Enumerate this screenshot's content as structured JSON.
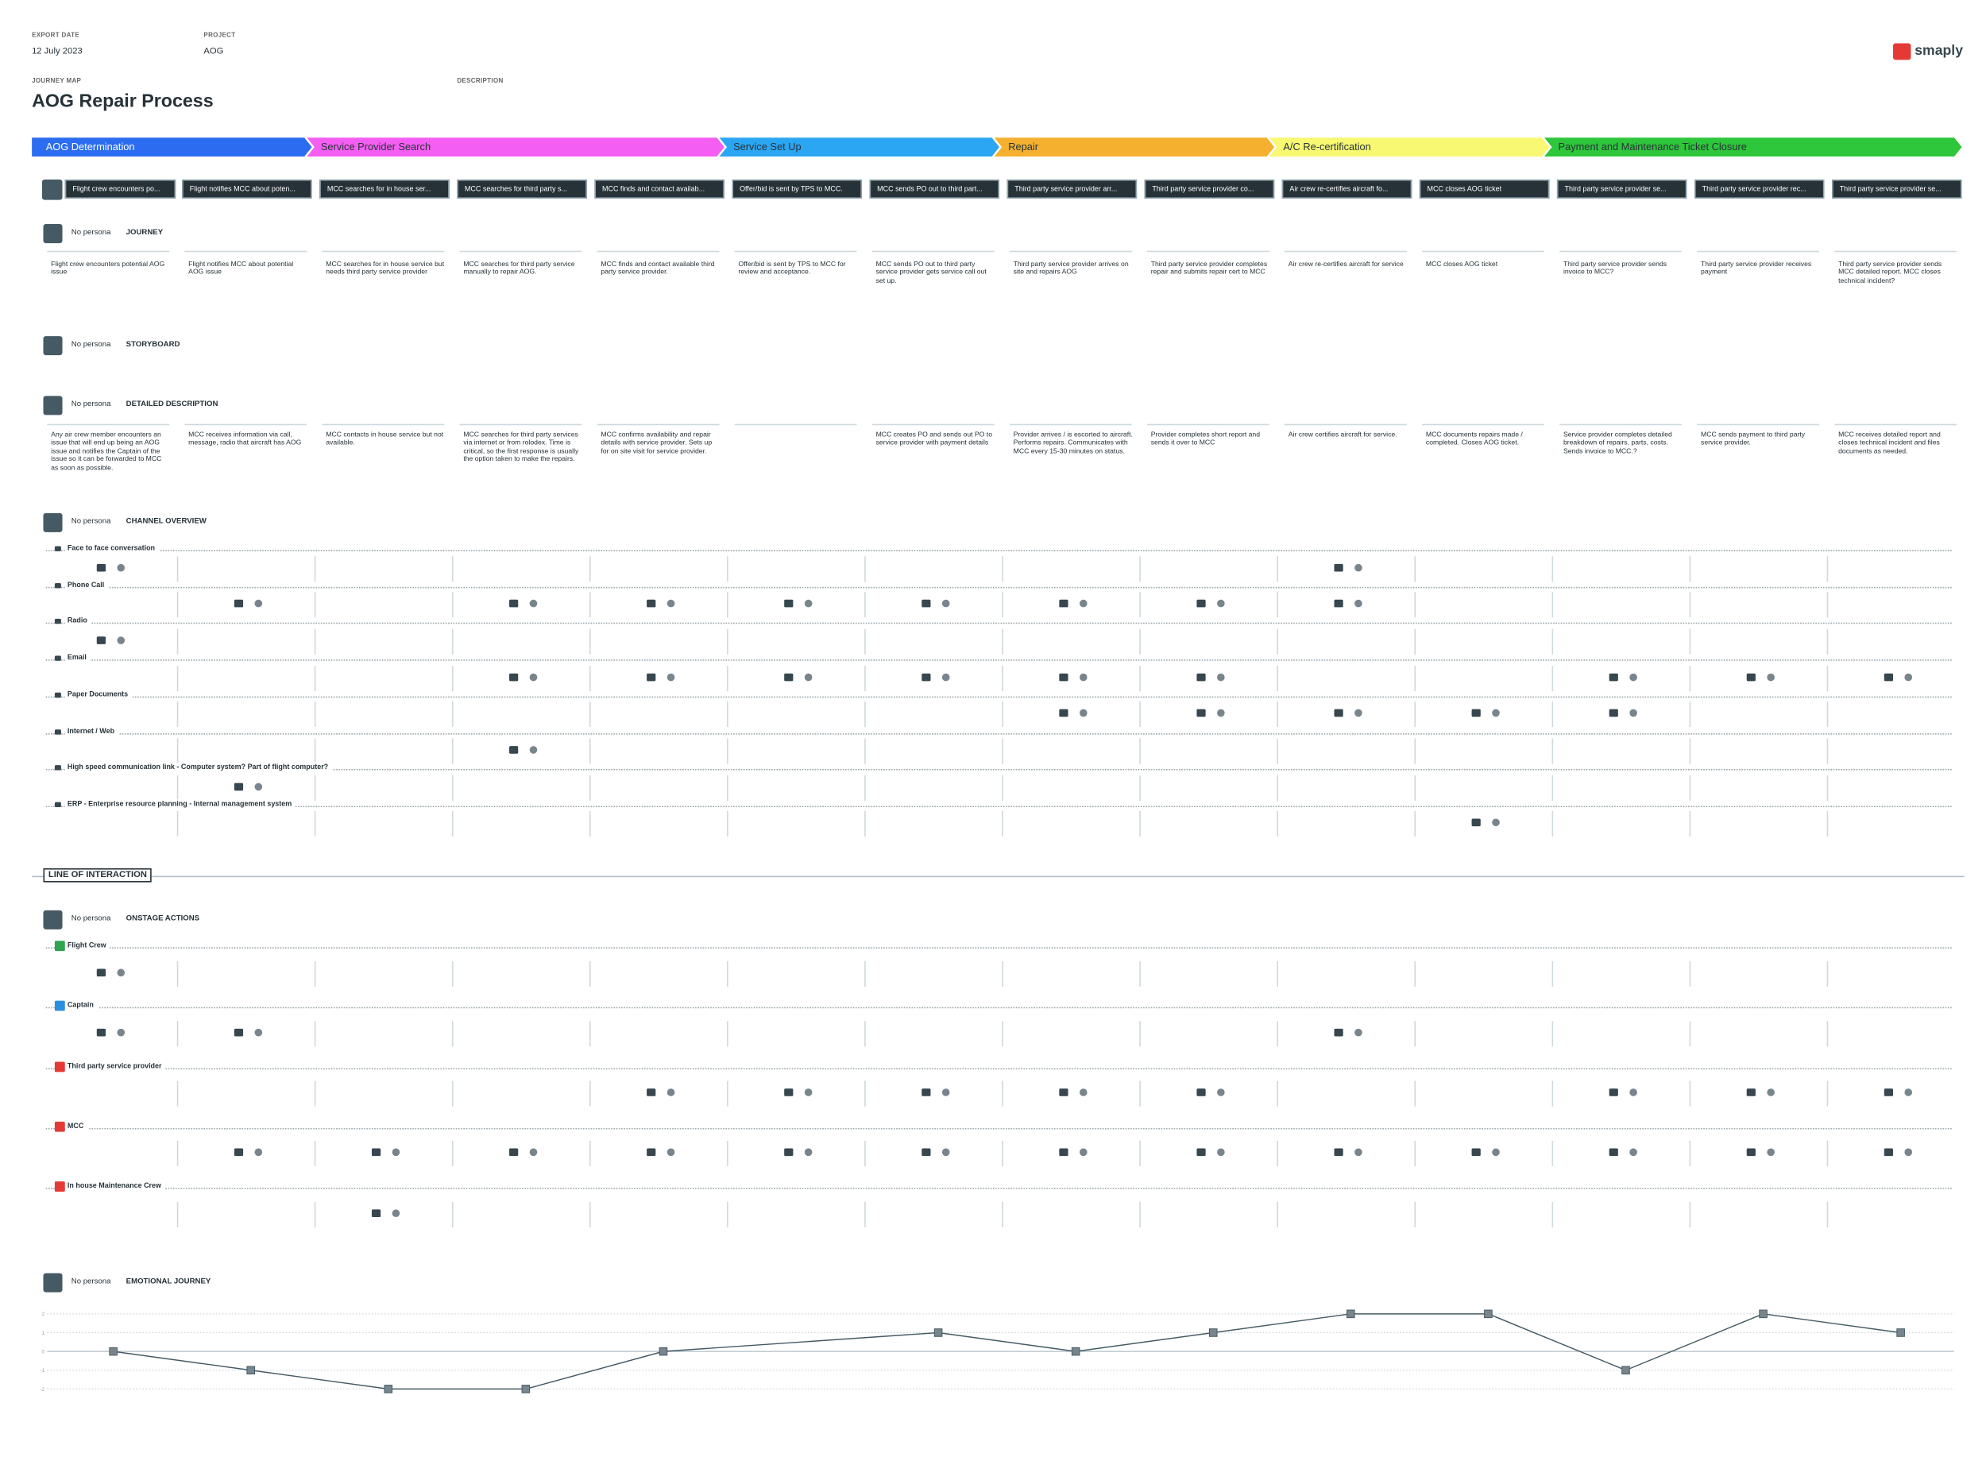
{
  "header": {
    "export_date_label": "EXPORT DATE",
    "export_date": "12 July 2023",
    "project_label": "PROJECT",
    "project": "AOG",
    "map_label": "JOURNEY MAP",
    "title": "AOG Repair Process",
    "description_label": "DESCRIPTION",
    "logo": "smaply"
  },
  "phases": [
    {
      "name": "AOG Determination",
      "color": "#2b6cf0",
      "span": [
        0,
        1
      ]
    },
    {
      "name": "Service Provider Search",
      "color": "#f55ef2",
      "span": [
        2,
        4
      ]
    },
    {
      "name": "Service Set Up",
      "color": "#2ba6f2",
      "span": [
        5,
        6
      ]
    },
    {
      "name": "Repair",
      "color": "#f6b030",
      "span": [
        7,
        8
      ]
    },
    {
      "name": "A/C Re-certification",
      "color": "#f8f872",
      "span": [
        9,
        10
      ]
    },
    {
      "name": "Payment and Maintenance Ticket Closure",
      "color": "#2ec63b",
      "span": [
        11,
        13
      ]
    }
  ],
  "steps": [
    "Flight crew encounters po...",
    "Flight notifies MCC about poten...",
    "MCC searches for in house ser...",
    "MCC searches for third party s...",
    "MCC finds and contact availab...",
    "Offer/bid is sent by TPS to MCC.",
    "MCC sends PO out to third part...",
    "Third party service provider arr...",
    "Third party service provider co...",
    "Air crew re-certifies aircraft fo...",
    "MCC closes AOG ticket",
    "Third party service provider se...",
    "Third party service provider rec...",
    "Third party service provider se..."
  ],
  "sections": {
    "journey": {
      "persona": "No persona",
      "title": "JOURNEY",
      "items": [
        "Flight crew encounters potential AOG issue",
        "Flight notifies MCC about potential AOG issue",
        "MCC searches for in house service but needs third party service provider",
        "MCC searches for third party service manually to repair AOG.",
        "MCC finds and contact available third party service provider.",
        "Offer/bid is sent by TPS to MCC for review and acceptance.",
        "MCC sends PO out to third party service provider gets service call out set up.",
        "Third party service provider arrives on site and repairs AOG",
        "Third party service provider completes repair and submits repair cert to MCC",
        "Air crew re-certifies aircraft for service",
        "MCC closes AOG ticket",
        "Third party service provider sends invoice to MCC?",
        "Third party service provider receives payment",
        "Third party service provider sends MCC detailed report. MCC closes technical incident?"
      ]
    },
    "storyboard": {
      "persona": "No persona",
      "title": "STORYBOARD"
    },
    "detailed_description": {
      "persona": "No persona",
      "title": "DETAILED DESCRIPTION",
      "items": [
        "Any air crew member encounters an issue that will end up being an AOG issue and notifies the Captain of the issue so it can be forwarded to MCC as soon as possible.",
        "MCC receives information via call, message, radio that aircraft has AOG",
        "MCC contacts in house service but not available.",
        "MCC searches for third party services via internet or from rolodex. Time is critical, so the first response is usually the option taken to make the repairs.",
        "MCC confirms availability and repair details with service provider. Sets up for on site visit for service provider.",
        null,
        "MCC creates PO and sends out PO to service provider with payment details",
        "Provider arrives / is escorted to aircraft. Performs repairs. Communicates with MCC every 15-30 minutes on status.",
        "Provider completes short report and sends it over to MCC",
        "Air crew certifies aircraft for service.",
        "MCC documents repairs made / completed. Closes AOG ticket.",
        "Service provider completes detailed breakdown of repairs, parts, costs. Sends invoice to MCC.?",
        "MCC sends payment to third party service provider.",
        "MCC receives detailed report and closes technical incident and files documents as needed."
      ]
    },
    "channel_overview": {
      "persona": "No persona",
      "title": "CHANNEL OVERVIEW",
      "channels": [
        {
          "name": "Face to face conversation",
          "columns": [
            0,
            9
          ]
        },
        {
          "name": "Phone Call",
          "columns": [
            1,
            3,
            4,
            5,
            6,
            7,
            8,
            9
          ]
        },
        {
          "name": "Radio",
          "columns": [
            0
          ]
        },
        {
          "name": "Email",
          "columns": [
            3,
            4,
            5,
            6,
            7,
            8,
            11,
            12,
            13
          ]
        },
        {
          "name": "Paper Documents",
          "columns": [
            7,
            8,
            9,
            10,
            11
          ]
        },
        {
          "name": "Internet / Web",
          "columns": [
            3
          ]
        },
        {
          "name": "High speed communication link - Computer system? Part of flight computer?",
          "columns": [
            1
          ]
        },
        {
          "name": "ERP - Enterprise resource planning - Internal management system",
          "columns": [
            10
          ]
        }
      ]
    },
    "line_of_interaction": "LINE OF INTERACTION",
    "onstage_actions": {
      "persona": "No persona",
      "title": "ONSTAGE ACTIONS",
      "actors": [
        {
          "name": "Flight Crew",
          "color": "#2ea44f",
          "columns": [
            0
          ]
        },
        {
          "name": "Captain",
          "color": "#2b8fe0",
          "columns": [
            0,
            1,
            9
          ]
        },
        {
          "name": "Third party service provider",
          "color": "#e53935",
          "columns": [
            4,
            5,
            6,
            7,
            8,
            11,
            12,
            13
          ]
        },
        {
          "name": "MCC",
          "color": "#e53935",
          "columns": [
            1,
            2,
            3,
            4,
            5,
            6,
            7,
            8,
            9,
            10,
            11,
            12,
            13
          ]
        },
        {
          "name": "In house Maintenance Crew",
          "color": "#e53935",
          "columns": [
            2
          ]
        }
      ]
    },
    "emotional_journey": {
      "persona": "No persona",
      "title": "EMOTIONAL JOURNEY",
      "chart_data": {
        "type": "line",
        "values": [
          0,
          -1,
          -2,
          -2,
          0,
          null,
          1,
          0,
          1,
          2,
          2,
          -1,
          2,
          1
        ],
        "ylim": [
          -2,
          2
        ],
        "yticks": [
          -2,
          -1,
          0,
          1,
          2
        ],
        "color": "#455a64",
        "grid": true
      }
    }
  }
}
